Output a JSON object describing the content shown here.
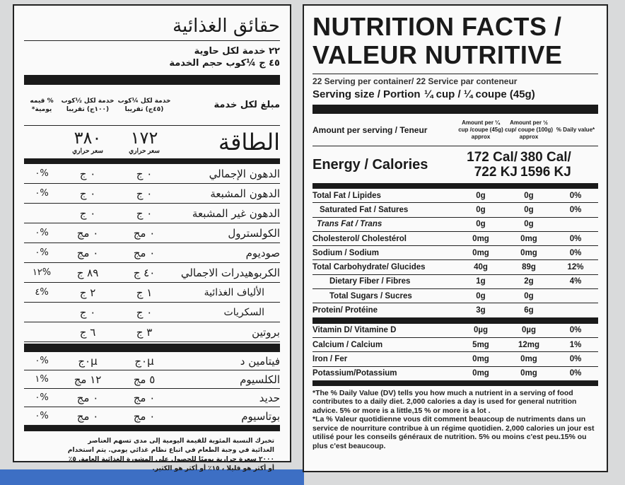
{
  "arabic": {
    "title": "حقائق الغذائية",
    "servings_per_container": "٢٢ خدمة لكل حاوية",
    "serving_size": "٤٥ ج ¼كوب حجم الخدمة",
    "amount_per_serving": "مبلغ لكل خدمة",
    "col_quarter": "خدمة لكل ¼كوب (٤٥ج) تقريبا",
    "col_half": "خدمة لكل ½كوب (١٠٠ج) تقريبا",
    "col_dv": "% قيمه يومية*",
    "energy_label": "الطاقة",
    "energy_quarter": "١٧٢",
    "energy_half": "٣٨٠",
    "energy_unit": "سعر حراري",
    "rows": [
      {
        "name": "الدهون الإجمالي",
        "q": "٠ ج",
        "h": "٠ ج",
        "dv": "%٠"
      },
      {
        "name": "الدهون المشبعة",
        "q": "٠ ج",
        "h": "٠ ج",
        "dv": "%٠"
      },
      {
        "name": "الدهون غير المشبعة",
        "q": "٠ ج",
        "h": "٠ ج",
        "dv": ""
      },
      {
        "name": "الكولسترول",
        "q": "٠ مج",
        "h": "٠ مج",
        "dv": "%٠"
      },
      {
        "name": "صوديوم",
        "q": "٠ مج",
        "h": "٠ مج",
        "dv": "%٠"
      },
      {
        "name": "الكربوهيدرات الاجمالي",
        "q": "٤٠ ج",
        "h": "٨٩ ج",
        "dv": "%١٢"
      },
      {
        "name": "الألياف الغذائية",
        "q": "١ ج",
        "h": "٢ ج",
        "dv": "%٤",
        "sub": true
      },
      {
        "name": "السكريات",
        "q": "٠ ج",
        "h": "٠ ج",
        "dv": "",
        "sub": true
      },
      {
        "name": "بروتين",
        "q": "٣ ج",
        "h": "٦ ج",
        "dv": ""
      }
    ],
    "vitamins": [
      {
        "name": "فيتامين د",
        "q": "٠µج",
        "h": "٠µج",
        "dv": "%٠"
      },
      {
        "name": "الكلسيوم",
        "q": "٥ مج",
        "h": "١٢ مج",
        "dv": "%١"
      },
      {
        "name": "حديد",
        "q": "٠ مج",
        "h": "٠ مج",
        "dv": "%٠"
      },
      {
        "name": "بوتاسيوم",
        "q": "٠ مج",
        "h": "٠ مج",
        "dv": "%٠"
      }
    ],
    "footnote": "تخبرك النسبة المئوية للقيمة اليومية إلى مدى تسهم العناصر الغذائية في وجبة الطعام في اتباع نظام غذائي يومي. يتم استخدام ٢٠٠٠ سعرة حرارية يوميًا للحصول على المشورة الغذائية العامة. ٥٪ أو أكثر هو قليلا ، ١٥٪ أو أكثر هو الكثير."
  },
  "english": {
    "title_line1": "NUTRITION FACTS /",
    "title_line2": "VALEUR NUTRITIVE",
    "servings_per_container": "22 Serving per container/ 22 Service par conteneur",
    "serving_size_label": "Serving size / Portion",
    "serving_size_value": "¼ cup / ¼ coupe (45g)",
    "amount_per_serving": "Amount per serving / Teneur",
    "col_quarter": "Amount per ¼ cup /coupe (45g) approx",
    "col_half": "Amount per ½ cup/ coupe (100g) approx",
    "col_dv": "% Daily value*",
    "energy_label": "Energy / Calories",
    "energy_quarter": "172 Cal/ 722 KJ",
    "energy_half": "380 Cal/ 1596 KJ",
    "rows": [
      {
        "name": "Total Fat / Lipides",
        "q": "0g",
        "h": "0g",
        "dv": "0%",
        "cls": ""
      },
      {
        "name": "Saturated Fat / Satures",
        "q": "0g",
        "h": "0g",
        "dv": "0%",
        "cls": "sub"
      },
      {
        "name": "Trans Fat / Trans",
        "q": "0g",
        "h": "0g",
        "dv": "",
        "cls": "it"
      },
      {
        "name": "Cholesterol/ Cholestérol",
        "q": "0mg",
        "h": "0mg",
        "dv": "0%",
        "cls": ""
      },
      {
        "name": "Sodium / Sodium",
        "q": "0mg",
        "h": "0mg",
        "dv": "0%",
        "cls": ""
      },
      {
        "name": "Total Carbohydrate/ Glucides",
        "q": "40g",
        "h": "89g",
        "dv": "12%",
        "cls": ""
      },
      {
        "name": "Dietary Fiber / Fibres",
        "q": "1g",
        "h": "2g",
        "dv": "4%",
        "cls": "sub2"
      },
      {
        "name": "Total Sugars / Sucres",
        "q": "0g",
        "h": "0g",
        "dv": "",
        "cls": "sub2"
      },
      {
        "name": "Protein/ Protéine",
        "q": "3g",
        "h": "6g",
        "dv": "",
        "cls": ""
      }
    ],
    "vitamins": [
      {
        "name": "Vitamin D/ Vitamine D",
        "q": "0µg",
        "h": "0µg",
        "dv": "0%",
        "cls": ""
      },
      {
        "name": "Calcium / Calcium",
        "q": "5mg",
        "h": "12mg",
        "dv": "1%",
        "cls": ""
      },
      {
        "name": "Iron / Fer",
        "q": "0mg",
        "h": "0mg",
        "dv": "0%",
        "cls": ""
      },
      {
        "name": "Potassium/Potassium",
        "q": "0mg",
        "h": "0mg",
        "dv": "0%",
        "cls": ""
      }
    ],
    "footnote_en": "*The % Daily Value (DV) tells you how much a nutrient in a serving of food contributes to a daily diet. 2,000 calories a day is used for general nutrition advice. 5% or more is a little,15 % or more is a lot .",
    "footnote_fr": "*La % Valeur quotidienne vous dit comment beaucoup de nutriments dans un service de nourriture contribue à un régime quotidien. 2,000 calories un jour est utilisé pour les conseils généraux de nutrition. 5% ou moins c'est peu.15% ou plus c'est beaucoup."
  }
}
